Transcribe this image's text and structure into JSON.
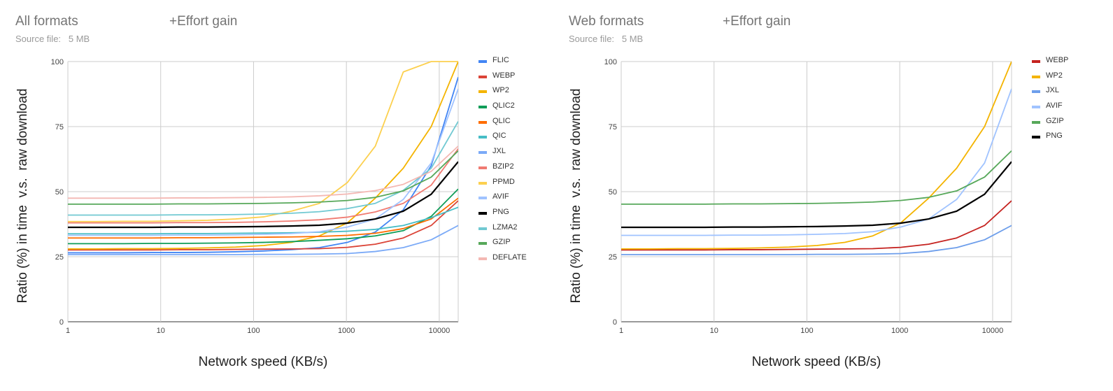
{
  "chart_data": [
    {
      "type": "line",
      "title": "All formats",
      "effort_label": "+Effort gain",
      "subtitle_label": "Source file:",
      "subtitle_value": "5 MB",
      "xlabel": "Network speed (KB/s)",
      "ylabel": "Ratio (%) in time  v.s.  raw download",
      "x_scale": "log",
      "xlim": [
        1,
        16000
      ],
      "ylim": [
        0,
        100
      ],
      "x_ticks": [
        1,
        10,
        100,
        1000,
        10000
      ],
      "y_ticks": [
        0,
        25,
        50,
        75,
        100
      ],
      "grid": true,
      "legend_position": "right",
      "x": [
        1,
        2,
        4,
        8,
        16,
        32,
        64,
        128,
        256,
        512,
        1024,
        2048,
        4096,
        8192,
        16384
      ],
      "series": [
        {
          "name": "FLIC",
          "color": "#4285f4",
          "values": [
            26.5,
            26.5,
            26.5,
            26.6,
            26.6,
            26.7,
            26.9,
            27.2,
            27.7,
            28.5,
            30.5,
            34.5,
            43,
            60,
            94
          ]
        },
        {
          "name": "WEBP",
          "color": "#db4437",
          "values": [
            27.6,
            27.6,
            27.6,
            27.6,
            27.7,
            27.7,
            27.8,
            27.9,
            28,
            28.1,
            28.6,
            29.8,
            32.2,
            37,
            46.5
          ]
        },
        {
          "name": "WP2",
          "color": "#f4b400",
          "values": [
            28,
            28,
            28.1,
            28.1,
            28.2,
            28.4,
            28.7,
            29.3,
            30.5,
            33,
            38,
            47.5,
            59,
            75,
            100
          ]
        },
        {
          "name": "QLIC2",
          "color": "#0f9d58",
          "values": [
            30,
            30,
            30,
            30.1,
            30.1,
            30.2,
            30.3,
            30.5,
            30.8,
            31.3,
            31.9,
            33,
            35,
            40.5,
            51
          ]
        },
        {
          "name": "QLIC",
          "color": "#ff6d00",
          "values": [
            32.2,
            32.2,
            32.2,
            32.2,
            32.3,
            32.3,
            32.4,
            32.5,
            32.6,
            32.8,
            33.2,
            34,
            35.8,
            39.5,
            47.5
          ]
        },
        {
          "name": "QIC",
          "color": "#46bdc6",
          "values": [
            33.8,
            33.8,
            33.8,
            33.8,
            33.9,
            33.9,
            34,
            34.1,
            34.2,
            34.4,
            34.8,
            35.5,
            37,
            40,
            44
          ]
        },
        {
          "name": "JXL",
          "color": "#7baaf7",
          "values": [
            25.8,
            25.8,
            25.8,
            25.8,
            25.8,
            25.8,
            25.8,
            25.9,
            25.9,
            26,
            26.2,
            27,
            28.5,
            31.5,
            37
          ]
        },
        {
          "name": "BZIP2",
          "color": "#f07b72",
          "values": [
            38,
            38,
            38,
            38,
            38.1,
            38.1,
            38.2,
            38.4,
            38.7,
            39.2,
            40.2,
            42.2,
            45.5,
            52.5,
            66.5
          ]
        },
        {
          "name": "PPMD",
          "color": "#fcd04f",
          "values": [
            38.5,
            38.5,
            38.6,
            38.6,
            38.8,
            39,
            39.5,
            40.3,
            42.5,
            45.5,
            53.5,
            67.5,
            96,
            100,
            100
          ]
        },
        {
          "name": "AVIF",
          "color": "#a0c3ff",
          "values": [
            33.2,
            33.2,
            33.2,
            33.2,
            33.3,
            33.3,
            33.4,
            33.6,
            33.9,
            34.6,
            36.4,
            39.5,
            47,
            61,
            89.5
          ]
        },
        {
          "name": "PNG",
          "color": "#000000",
          "values": [
            36.3,
            36.3,
            36.3,
            36.3,
            36.4,
            36.4,
            36.5,
            36.6,
            36.8,
            37.1,
            37.9,
            39.5,
            42.5,
            49,
            61.5
          ]
        },
        {
          "name": "LZMA2",
          "color": "#71c9d2",
          "values": [
            41,
            41,
            41,
            41,
            41.1,
            41.1,
            41.2,
            41.4,
            41.7,
            42.3,
            43.5,
            45.5,
            50.5,
            59,
            77
          ]
        },
        {
          "name": "GZIP",
          "color": "#57a85a",
          "values": [
            45.2,
            45.2,
            45.2,
            45.2,
            45.3,
            45.3,
            45.4,
            45.5,
            45.7,
            46,
            46.6,
            47.8,
            50.3,
            55.6,
            65.7
          ]
        },
        {
          "name": "DEFLATE",
          "color": "#f4b8b3",
          "values": [
            47.5,
            47.5,
            47.5,
            47.5,
            47.6,
            47.6,
            47.7,
            47.8,
            48,
            48.4,
            49.1,
            50.4,
            52.8,
            57.8,
            67.5
          ]
        }
      ]
    },
    {
      "type": "line",
      "title": "Web formats",
      "effort_label": "+Effort gain",
      "subtitle_label": "Source file:",
      "subtitle_value": "5 MB",
      "xlabel": "Network speed (KB/s)",
      "ylabel": "Ratio (%) in time  v.s.  raw download",
      "x_scale": "log",
      "xlim": [
        1,
        16000
      ],
      "ylim": [
        0,
        100
      ],
      "x_ticks": [
        1,
        10,
        100,
        1000,
        10000
      ],
      "y_ticks": [
        0,
        25,
        50,
        75,
        100
      ],
      "grid": true,
      "legend_position": "right",
      "x": [
        1,
        2,
        4,
        8,
        16,
        32,
        64,
        128,
        256,
        512,
        1024,
        2048,
        4096,
        8192,
        16384
      ],
      "series": [
        {
          "name": "WEBP",
          "color": "#c5221f",
          "values": [
            27.6,
            27.6,
            27.6,
            27.6,
            27.7,
            27.7,
            27.8,
            27.9,
            28,
            28.1,
            28.6,
            29.8,
            32.2,
            37,
            46.5
          ]
        },
        {
          "name": "WP2",
          "color": "#f4b400",
          "values": [
            28,
            28,
            28.1,
            28.1,
            28.2,
            28.4,
            28.7,
            29.3,
            30.5,
            33,
            38,
            47.5,
            59,
            75,
            100
          ]
        },
        {
          "name": "JXL",
          "color": "#6d9eeb",
          "values": [
            25.8,
            25.8,
            25.8,
            25.8,
            25.8,
            25.8,
            25.8,
            25.9,
            25.9,
            26,
            26.2,
            27,
            28.5,
            31.5,
            37
          ]
        },
        {
          "name": "AVIF",
          "color": "#a0c3ff",
          "values": [
            33.2,
            33.2,
            33.2,
            33.2,
            33.3,
            33.3,
            33.4,
            33.6,
            33.9,
            34.6,
            36.4,
            39.5,
            47,
            61,
            89.5
          ]
        },
        {
          "name": "GZIP",
          "color": "#57a85a",
          "values": [
            45.2,
            45.2,
            45.2,
            45.2,
            45.3,
            45.3,
            45.4,
            45.5,
            45.7,
            46,
            46.6,
            47.8,
            50.3,
            55.6,
            65.7
          ]
        },
        {
          "name": "PNG",
          "color": "#000000",
          "values": [
            36.3,
            36.3,
            36.3,
            36.3,
            36.4,
            36.4,
            36.5,
            36.6,
            36.8,
            37.1,
            37.9,
            39.5,
            42.5,
            49,
            61.5
          ]
        }
      ]
    }
  ]
}
